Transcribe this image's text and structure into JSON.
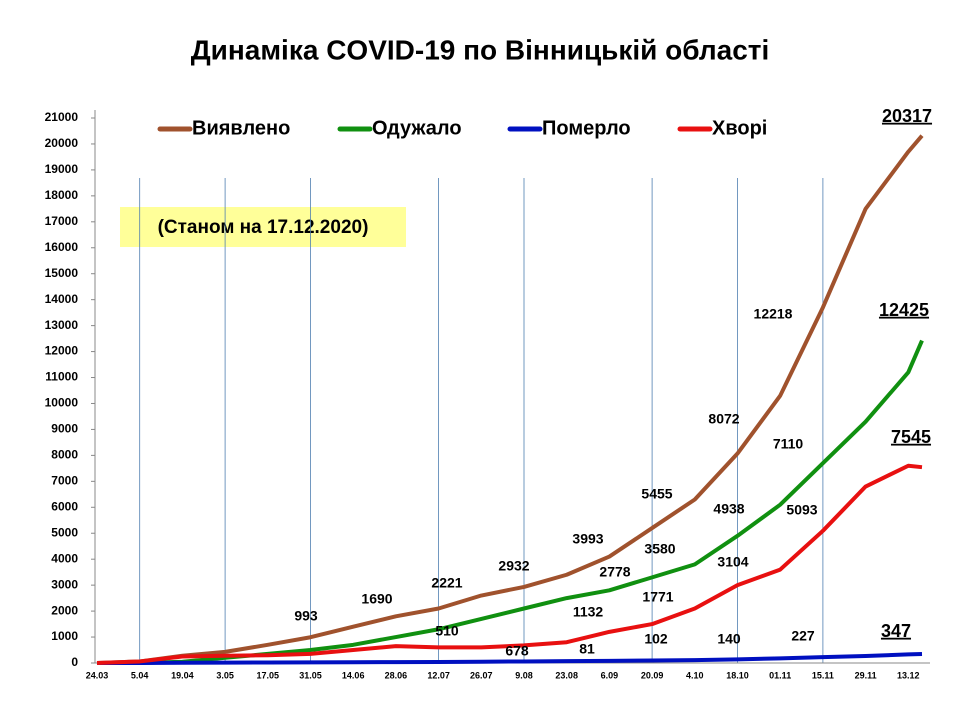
{
  "chart_data": {
    "type": "line",
    "title": "Динаміка COVID-19 по Вінницькій області",
    "subtitle": "(Станом на 17.12.2020)",
    "categories": [
      "24.03",
      "5.04",
      "19.04",
      "3.05",
      "17.05",
      "31.05",
      "14.06",
      "28.06",
      "12.07",
      "26.07",
      "9.08",
      "23.08",
      "6.09",
      "20.09",
      "4.10",
      "18.10",
      "01.11",
      "15.11",
      "29.11",
      "13.12",
      null
    ],
    "series": [
      {
        "name": "Виявлено",
        "color": "#a0522d",
        "values": [
          0,
          60,
          280,
          430,
          700,
          993,
          1400,
          1800,
          2100,
          2600,
          2932,
          3400,
          4100,
          5200,
          6300,
          8072,
          10300,
          13700,
          17500,
          19700,
          20317
        ]
      },
      {
        "name": "Одужало",
        "color": "#109010",
        "values": [
          0,
          0,
          50,
          200,
          350,
          500,
          700,
          1000,
          1300,
          1700,
          2100,
          2500,
          2800,
          3300,
          3800,
          4900,
          6100,
          7700,
          9300,
          11200,
          12425
        ]
      },
      {
        "name": "Померло",
        "color": "#0010c0",
        "values": [
          0,
          2,
          10,
          15,
          20,
          25,
          30,
          35,
          40,
          50,
          60,
          70,
          81,
          95,
          110,
          140,
          180,
          227,
          270,
          330,
          347
        ]
      },
      {
        "name": "Хворі",
        "color": "#e81010",
        "values": [
          0,
          60,
          250,
          280,
          300,
          350,
          500,
          650,
          600,
          600,
          678,
          800,
          1200,
          1500,
          2100,
          3000,
          3600,
          5093,
          6800,
          7600,
          7545
        ]
      }
    ],
    "annotations": [
      "993",
      "1690",
      "2221",
      "2932",
      "3993",
      "5455",
      "8072",
      "12218",
      "20317",
      "2778",
      "3580",
      "4938",
      "7110",
      "12425",
      "510",
      "678",
      "1132",
      "1771",
      "3104",
      "5093",
      "7545",
      "81",
      "102",
      "140",
      "227",
      "347"
    ],
    "ylim": [
      0,
      21000
    ],
    "yticks": [
      0,
      1000,
      2000,
      3000,
      4000,
      5000,
      6000,
      7000,
      8000,
      9000,
      10000,
      11000,
      12000,
      13000,
      14000,
      15000,
      16000,
      17000,
      18000,
      19000,
      20000,
      21000
    ],
    "legend": "top"
  }
}
